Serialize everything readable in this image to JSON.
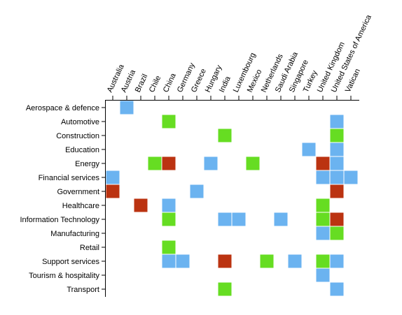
{
  "chart_data": {
    "type": "heatmap",
    "title": "",
    "xlabel": "",
    "ylabel": "",
    "x_categories": [
      "Australia",
      "Austria",
      "Brazil",
      "Chile",
      "China",
      "Germany",
      "Greece",
      "Hungary",
      "India",
      "Luxembourg",
      "Mexico",
      "Netherlands",
      "Saudi Arabia",
      "Singapore",
      "Turkey",
      "United Kingdom",
      "United States of America",
      "Vatican"
    ],
    "y_categories": [
      "Aerospace & defence",
      "Automotive",
      "Construction",
      "Education",
      "Energy",
      "Financial services",
      "Government",
      "Healthcare",
      "Information Technology",
      "Manufacturing",
      "Retail",
      "Support services",
      "Tourism & hospitality",
      "Transport"
    ],
    "color_key": {
      "blue": "#6bb3f0",
      "green": "#66dd22",
      "red": "#bb3311"
    },
    "cells": [
      {
        "y": "Aerospace & defence",
        "x": "Austria",
        "color": "blue"
      },
      {
        "y": "Automotive",
        "x": "China",
        "color": "green"
      },
      {
        "y": "Automotive",
        "x": "United States of America",
        "color": "blue"
      },
      {
        "y": "Construction",
        "x": "India",
        "color": "green"
      },
      {
        "y": "Construction",
        "x": "United States of America",
        "color": "green"
      },
      {
        "y": "Education",
        "x": "Turkey",
        "color": "blue"
      },
      {
        "y": "Education",
        "x": "United States of America",
        "color": "blue"
      },
      {
        "y": "Energy",
        "x": "Chile",
        "color": "green"
      },
      {
        "y": "Energy",
        "x": "China",
        "color": "red"
      },
      {
        "y": "Energy",
        "x": "Hungary",
        "color": "blue"
      },
      {
        "y": "Energy",
        "x": "Mexico",
        "color": "green"
      },
      {
        "y": "Energy",
        "x": "United Kingdom",
        "color": "red"
      },
      {
        "y": "Energy",
        "x": "United States of America",
        "color": "blue"
      },
      {
        "y": "Financial services",
        "x": "Australia",
        "color": "blue"
      },
      {
        "y": "Financial services",
        "x": "United Kingdom",
        "color": "blue"
      },
      {
        "y": "Financial services",
        "x": "United States of America",
        "color": "blue"
      },
      {
        "y": "Financial services",
        "x": "Vatican",
        "color": "blue"
      },
      {
        "y": "Government",
        "x": "Australia",
        "color": "red"
      },
      {
        "y": "Government",
        "x": "Greece",
        "color": "blue"
      },
      {
        "y": "Government",
        "x": "United States of America",
        "color": "red"
      },
      {
        "y": "Healthcare",
        "x": "Brazil",
        "color": "red"
      },
      {
        "y": "Healthcare",
        "x": "China",
        "color": "blue"
      },
      {
        "y": "Healthcare",
        "x": "United Kingdom",
        "color": "green"
      },
      {
        "y": "Information Technology",
        "x": "China",
        "color": "green"
      },
      {
        "y": "Information Technology",
        "x": "India",
        "color": "blue"
      },
      {
        "y": "Information Technology",
        "x": "Luxembourg",
        "color": "blue"
      },
      {
        "y": "Information Technology",
        "x": "Saudi Arabia",
        "color": "blue"
      },
      {
        "y": "Information Technology",
        "x": "United Kingdom",
        "color": "green"
      },
      {
        "y": "Information Technology",
        "x": "United States of America",
        "color": "red"
      },
      {
        "y": "Manufacturing",
        "x": "United Kingdom",
        "color": "blue"
      },
      {
        "y": "Manufacturing",
        "x": "United States of America",
        "color": "green"
      },
      {
        "y": "Retail",
        "x": "China",
        "color": "green"
      },
      {
        "y": "Support services",
        "x": "China",
        "color": "blue"
      },
      {
        "y": "Support services",
        "x": "Germany",
        "color": "blue"
      },
      {
        "y": "Support services",
        "x": "India",
        "color": "red"
      },
      {
        "y": "Support services",
        "x": "Netherlands",
        "color": "green"
      },
      {
        "y": "Support services",
        "x": "Singapore",
        "color": "blue"
      },
      {
        "y": "Support services",
        "x": "United Kingdom",
        "color": "green"
      },
      {
        "y": "Support services",
        "x": "United States of America",
        "color": "blue"
      },
      {
        "y": "Tourism & hospitality",
        "x": "United Kingdom",
        "color": "blue"
      },
      {
        "y": "Transport",
        "x": "India",
        "color": "green"
      },
      {
        "y": "Transport",
        "x": "United States of America",
        "color": "blue"
      }
    ],
    "grid": false,
    "legend": "none"
  }
}
